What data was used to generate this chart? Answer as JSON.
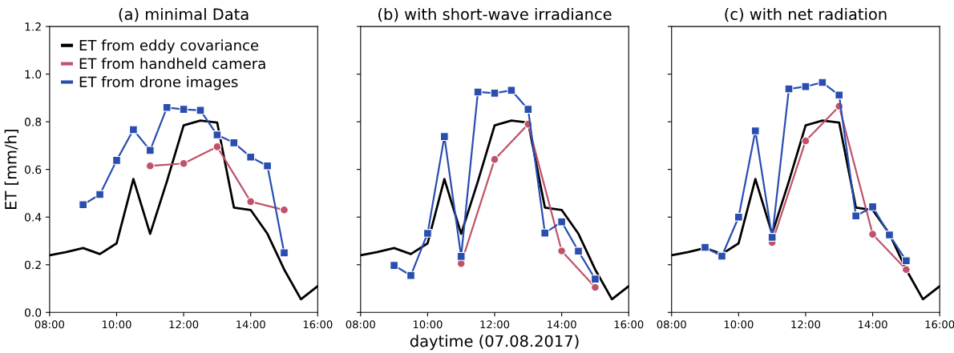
{
  "chart_data": [
    {
      "type": "line",
      "title": "(a) minimal Data",
      "ylabel": "ET [mm/h]",
      "legend": "top left",
      "grid": false,
      "xlim": [
        8,
        16
      ],
      "xticks": [
        {
          "value": 8,
          "label": "08:00"
        },
        {
          "value": 10,
          "label": "10:00"
        },
        {
          "value": 12,
          "label": "12:00"
        },
        {
          "value": 14,
          "label": "14:00"
        },
        {
          "value": 16,
          "label": "16:00"
        }
      ],
      "ylim": [
        0,
        1.2
      ],
      "yticks": [
        {
          "value": 0,
          "label": "0.0"
        },
        {
          "value": 0.2,
          "label": "0.2"
        },
        {
          "value": 0.4,
          "label": "0.4"
        },
        {
          "value": 0.6,
          "label": "0.6"
        },
        {
          "value": 0.8,
          "label": "0.8"
        },
        {
          "value": 1.0,
          "label": "1.0"
        },
        {
          "value": 1.2,
          "label": "1.2"
        }
      ],
      "series": [
        {
          "name": "ET from eddy covariance",
          "color": "#000000",
          "marker": "none",
          "x": [
            8,
            8.5,
            9,
            9.5,
            10,
            10.5,
            11,
            11.5,
            12,
            12.5,
            13,
            13.5,
            14,
            14.5,
            15,
            15.5,
            16
          ],
          "values": [
            0.24,
            0.253,
            0.27,
            0.245,
            0.29,
            0.56,
            0.33,
            0.55,
            0.785,
            0.805,
            0.797,
            0.44,
            0.43,
            0.33,
            0.18,
            0.055,
            0.11
          ]
        },
        {
          "name": "ET from handheld camera",
          "color": "#c0536a",
          "marker": "circle",
          "x": [
            11,
            12,
            13,
            14,
            15
          ],
          "values": [
            0.615,
            0.625,
            0.695,
            0.465,
            0.43
          ]
        },
        {
          "name": "ET from drone images",
          "color": "#2a4eb0",
          "marker": "square",
          "x": [
            9,
            9.5,
            10,
            10.5,
            11,
            11.5,
            12,
            12.5,
            13,
            13.5,
            14,
            14.5,
            15
          ],
          "values": [
            0.452,
            0.495,
            0.638,
            0.767,
            0.68,
            0.86,
            0.852,
            0.848,
            0.745,
            0.712,
            0.652,
            0.615,
            0.25
          ]
        }
      ]
    },
    {
      "type": "line",
      "title": "(b) with short-wave irradiance",
      "xlabel": "daytime (07.08.2017)",
      "tick_labels": "x",
      "grid": false,
      "xlim": [
        8,
        16
      ],
      "xticks": [
        {
          "value": 8,
          "label": "08:00"
        },
        {
          "value": 10,
          "label": "10:00"
        },
        {
          "value": 12,
          "label": "12:00"
        },
        {
          "value": 14,
          "label": "14:00"
        },
        {
          "value": 16,
          "label": "16:00"
        }
      ],
      "ylim": [
        0,
        1.2
      ],
      "yticks": [
        0,
        0.2,
        0.4,
        0.6,
        0.8,
        1.0,
        1.2
      ],
      "series": [
        {
          "color": "#000000",
          "marker": "none",
          "x": [
            8,
            8.5,
            9,
            9.5,
            10,
            10.5,
            11,
            11.5,
            12,
            12.5,
            13,
            13.5,
            14,
            14.5,
            15,
            15.5,
            16
          ],
          "values": [
            0.24,
            0.253,
            0.27,
            0.245,
            0.29,
            0.56,
            0.33,
            0.55,
            0.785,
            0.805,
            0.797,
            0.44,
            0.43,
            0.33,
            0.18,
            0.055,
            0.11
          ]
        },
        {
          "color": "#c0536a",
          "marker": "circle",
          "x": [
            11,
            12,
            13,
            14,
            15
          ],
          "values": [
            0.205,
            0.642,
            0.79,
            0.258,
            0.105
          ]
        },
        {
          "color": "#2a4eb0",
          "marker": "square",
          "x": [
            9,
            9.5,
            10,
            10.5,
            11,
            11.5,
            12,
            12.5,
            13,
            13.5,
            14,
            14.5,
            15
          ],
          "values": [
            0.197,
            0.155,
            0.332,
            0.738,
            0.235,
            0.925,
            0.92,
            0.932,
            0.852,
            0.333,
            0.38,
            0.257,
            0.14
          ]
        }
      ]
    },
    {
      "type": "line",
      "title": "(c) with net radiation",
      "tick_labels": "x",
      "grid": false,
      "xlim": [
        8,
        16
      ],
      "xticks": [
        {
          "value": 8,
          "label": "08:00"
        },
        {
          "value": 10,
          "label": "10:00"
        },
        {
          "value": 12,
          "label": "12:00"
        },
        {
          "value": 14,
          "label": "14:00"
        },
        {
          "value": 16,
          "label": "16:00"
        }
      ],
      "ylim": [
        0,
        1.2
      ],
      "yticks": [
        0,
        0.2,
        0.4,
        0.6,
        0.8,
        1.0,
        1.2
      ],
      "series": [
        {
          "color": "#000000",
          "marker": "none",
          "x": [
            8,
            8.5,
            9,
            9.5,
            10,
            10.5,
            11,
            11.5,
            12,
            12.5,
            13,
            13.5,
            14,
            14.5,
            15,
            15.5,
            16
          ],
          "values": [
            0.24,
            0.253,
            0.27,
            0.245,
            0.29,
            0.56,
            0.33,
            0.55,
            0.785,
            0.805,
            0.797,
            0.44,
            0.43,
            0.33,
            0.18,
            0.055,
            0.11
          ]
        },
        {
          "color": "#c0536a",
          "marker": "circle",
          "x": [
            11,
            12,
            13,
            14,
            15
          ],
          "values": [
            0.293,
            0.72,
            0.865,
            0.328,
            0.18
          ]
        },
        {
          "color": "#2a4eb0",
          "marker": "square",
          "x": [
            9,
            9.5,
            10,
            10.5,
            11,
            11.5,
            12,
            12.5,
            13,
            13.5,
            14,
            14.5,
            15
          ],
          "values": [
            0.273,
            0.236,
            0.4,
            0.762,
            0.315,
            0.938,
            0.948,
            0.965,
            0.912,
            0.405,
            0.443,
            0.325,
            0.217
          ]
        }
      ]
    }
  ]
}
